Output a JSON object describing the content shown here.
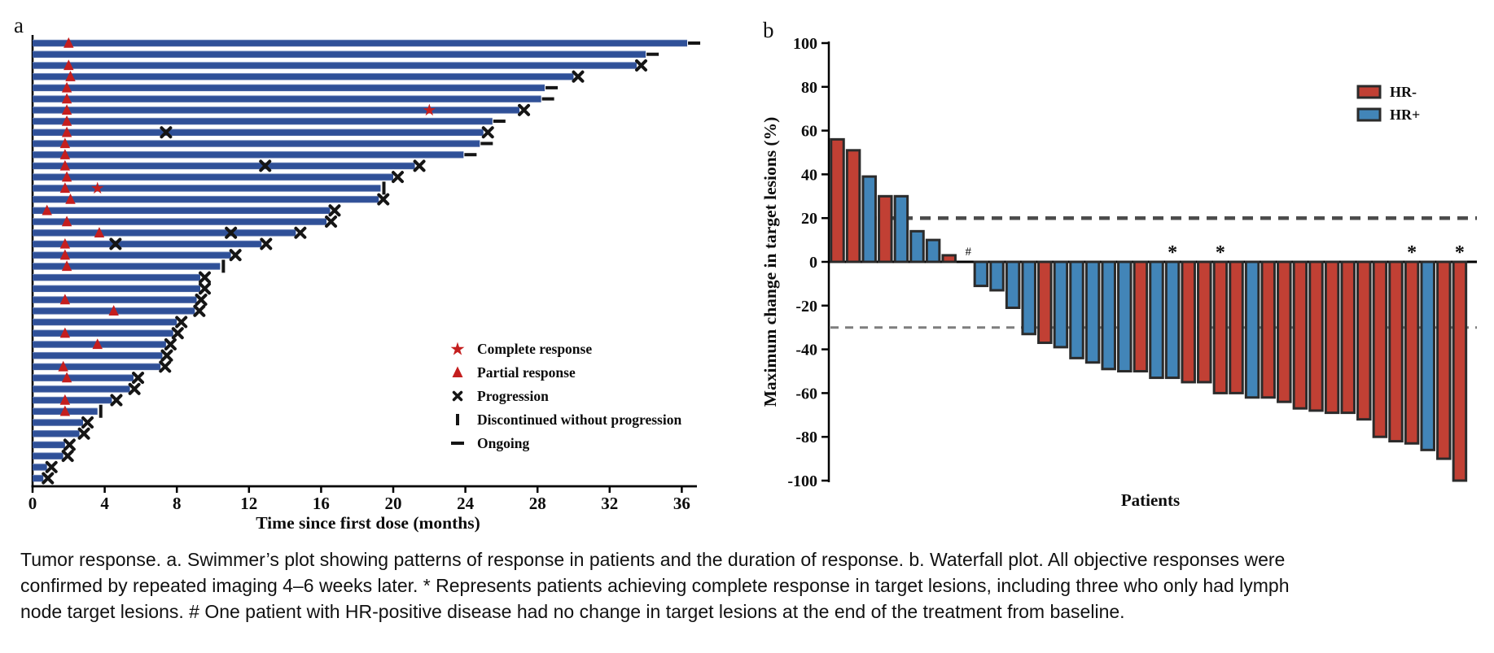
{
  "figure": {
    "panel_a_label": "a",
    "panel_b_label": "b"
  },
  "caption": {
    "line1": "Tumor response. a. Swimmer’s plot showing patterns of response in patients and the duration of response. b. Waterfall plot. All objective responses were",
    "line2": "confirmed by repeated imaging 4–6 weeks later. * Represents patients achieving complete response in target lesions, including three who only had lymph",
    "line3": "node target lesions. # One patient with HR-positive disease had no change in target lesions at the end of the treatment from baseline."
  },
  "chart_data": [
    {
      "id": "swimmer",
      "type": "bar",
      "orientation": "horizontal",
      "xlabel": "Time since first dose (months)",
      "xlim": [
        0,
        36.8
      ],
      "x_ticks": [
        0,
        4,
        8,
        12,
        16,
        20,
        24,
        28,
        32,
        36
      ],
      "bar_color": "#2F5098",
      "marker_red": "#C41E1E",
      "marker_black": "#151515",
      "legend": [
        {
          "symbol": "star",
          "label": "Complete response"
        },
        {
          "symbol": "triangle",
          "label": "Partial response"
        },
        {
          "symbol": "cross",
          "label": "Progression"
        },
        {
          "symbol": "bar",
          "label": "Discontinued without progression"
        },
        {
          "symbol": "dash",
          "label": "Ongoing"
        }
      ],
      "bars": [
        {
          "duration": 36.3,
          "end_marker": "ongoing",
          "partial_response": 2.0
        },
        {
          "duration": 34.0,
          "end_marker": "ongoing"
        },
        {
          "duration": 33.5,
          "end_marker": "progression",
          "partial_response": 2.0
        },
        {
          "duration": 30.0,
          "end_marker": "progression",
          "partial_response": 2.1
        },
        {
          "duration": 28.4,
          "end_marker": "ongoing",
          "partial_response": 1.9
        },
        {
          "duration": 28.2,
          "end_marker": "ongoing",
          "partial_response": 1.9
        },
        {
          "duration": 27.0,
          "end_marker": "progression",
          "partial_response": 1.9,
          "complete_response": 22.0
        },
        {
          "duration": 25.5,
          "end_marker": "ongoing",
          "partial_response": 1.9
        },
        {
          "duration": 25.0,
          "end_marker": "progression",
          "partial_response": 1.9,
          "progression_marks": [
            7.4
          ]
        },
        {
          "duration": 24.8,
          "end_marker": "ongoing",
          "partial_response": 1.8
        },
        {
          "duration": 23.9,
          "end_marker": "ongoing",
          "partial_response": 1.8
        },
        {
          "duration": 21.2,
          "end_marker": "progression",
          "partial_response": 1.8,
          "progression_marks": [
            12.9
          ]
        },
        {
          "duration": 20.0,
          "end_marker": "progression",
          "partial_response": 1.9
        },
        {
          "duration": 19.3,
          "end_marker": "discontinued",
          "partial_response": 1.8,
          "complete_response": 3.6
        },
        {
          "duration": 19.2,
          "end_marker": "progression",
          "partial_response": 2.1
        },
        {
          "duration": 16.5,
          "end_marker": "progression",
          "partial_response": 0.8
        },
        {
          "duration": 16.3,
          "end_marker": "progression",
          "partial_response": 1.9
        },
        {
          "duration": 14.6,
          "end_marker": "progression",
          "partial_response": 3.7,
          "progression_marks": [
            11.0
          ]
        },
        {
          "duration": 12.7,
          "end_marker": "progression",
          "partial_response": 1.8,
          "progression_marks": [
            4.6
          ]
        },
        {
          "duration": 11.0,
          "end_marker": "progression",
          "partial_response": 1.8
        },
        {
          "duration": 10.4,
          "end_marker": "discontinued",
          "partial_response": 1.9
        },
        {
          "duration": 9.3,
          "end_marker": "progression"
        },
        {
          "duration": 9.3,
          "end_marker": "progression"
        },
        {
          "duration": 9.1,
          "end_marker": "progression",
          "partial_response": 1.8
        },
        {
          "duration": 9.0,
          "end_marker": "progression",
          "partial_response": 4.5
        },
        {
          "duration": 8.0,
          "end_marker": "progression"
        },
        {
          "duration": 7.8,
          "end_marker": "progression",
          "partial_response": 1.8
        },
        {
          "duration": 7.4,
          "end_marker": "progression",
          "partial_response": 3.6
        },
        {
          "duration": 7.2,
          "end_marker": "progression"
        },
        {
          "duration": 7.1,
          "end_marker": "progression",
          "partial_response": 1.7
        },
        {
          "duration": 5.6,
          "end_marker": "progression",
          "partial_response": 1.9
        },
        {
          "duration": 5.4,
          "end_marker": "progression"
        },
        {
          "duration": 4.4,
          "end_marker": "progression",
          "partial_response": 1.8
        },
        {
          "duration": 3.6,
          "end_marker": "discontinued",
          "partial_response": 1.8
        },
        {
          "duration": 2.8,
          "end_marker": "progression"
        },
        {
          "duration": 2.6,
          "end_marker": "progression"
        },
        {
          "duration": 1.8,
          "end_marker": "progression"
        },
        {
          "duration": 1.7,
          "end_marker": "progression"
        },
        {
          "duration": 0.8,
          "end_marker": "progression"
        },
        {
          "duration": 0.6,
          "end_marker": "progression"
        }
      ]
    },
    {
      "id": "waterfall",
      "type": "bar",
      "ylabel": "Maximum change in target lesions (%)",
      "xlabel": "Patients",
      "ylim": [
        -100,
        100
      ],
      "y_ticks": [
        100,
        80,
        60,
        40,
        20,
        0,
        -20,
        -40,
        -60,
        -80,
        -100
      ],
      "reference_lines": [
        20,
        -30
      ],
      "legend": [
        {
          "label": "HR-",
          "color": "#C14034"
        },
        {
          "label": "HR+",
          "color": "#4285B8"
        }
      ],
      "group_colors": {
        "HR-": "#C14034",
        "HR+": "#4285B8"
      },
      "bars": [
        {
          "value": 56,
          "group": "HR-"
        },
        {
          "value": 51,
          "group": "HR-"
        },
        {
          "value": 39,
          "group": "HR+"
        },
        {
          "value": 30,
          "group": "HR-"
        },
        {
          "value": 30,
          "group": "HR+"
        },
        {
          "value": 14,
          "group": "HR+"
        },
        {
          "value": 10,
          "group": "HR+"
        },
        {
          "value": 3,
          "group": "HR-"
        },
        {
          "value": 0,
          "group": "HR+",
          "annotation": "#"
        },
        {
          "value": -11,
          "group": "HR+"
        },
        {
          "value": -13,
          "group": "HR+"
        },
        {
          "value": -21,
          "group": "HR+"
        },
        {
          "value": -33,
          "group": "HR+"
        },
        {
          "value": -37,
          "group": "HR-"
        },
        {
          "value": -39,
          "group": "HR+"
        },
        {
          "value": -44,
          "group": "HR+"
        },
        {
          "value": -46,
          "group": "HR+"
        },
        {
          "value": -49,
          "group": "HR+"
        },
        {
          "value": -50,
          "group": "HR+"
        },
        {
          "value": -50,
          "group": "HR-"
        },
        {
          "value": -53,
          "group": "HR+"
        },
        {
          "value": -53,
          "group": "HR+",
          "annotation": "*"
        },
        {
          "value": -55,
          "group": "HR-"
        },
        {
          "value": -55,
          "group": "HR-"
        },
        {
          "value": -60,
          "group": "HR-",
          "annotation": "*"
        },
        {
          "value": -60,
          "group": "HR-"
        },
        {
          "value": -62,
          "group": "HR+"
        },
        {
          "value": -62,
          "group": "HR-"
        },
        {
          "value": -64,
          "group": "HR-"
        },
        {
          "value": -67,
          "group": "HR-"
        },
        {
          "value": -68,
          "group": "HR-"
        },
        {
          "value": -69,
          "group": "HR-"
        },
        {
          "value": -69,
          "group": "HR-"
        },
        {
          "value": -72,
          "group": "HR-"
        },
        {
          "value": -80,
          "group": "HR-"
        },
        {
          "value": -82,
          "group": "HR-"
        },
        {
          "value": -83,
          "group": "HR-",
          "annotation": "*"
        },
        {
          "value": -86,
          "group": "HR+"
        },
        {
          "value": -90,
          "group": "HR-"
        },
        {
          "value": -100,
          "group": "HR-",
          "annotation": "*"
        }
      ]
    }
  ]
}
